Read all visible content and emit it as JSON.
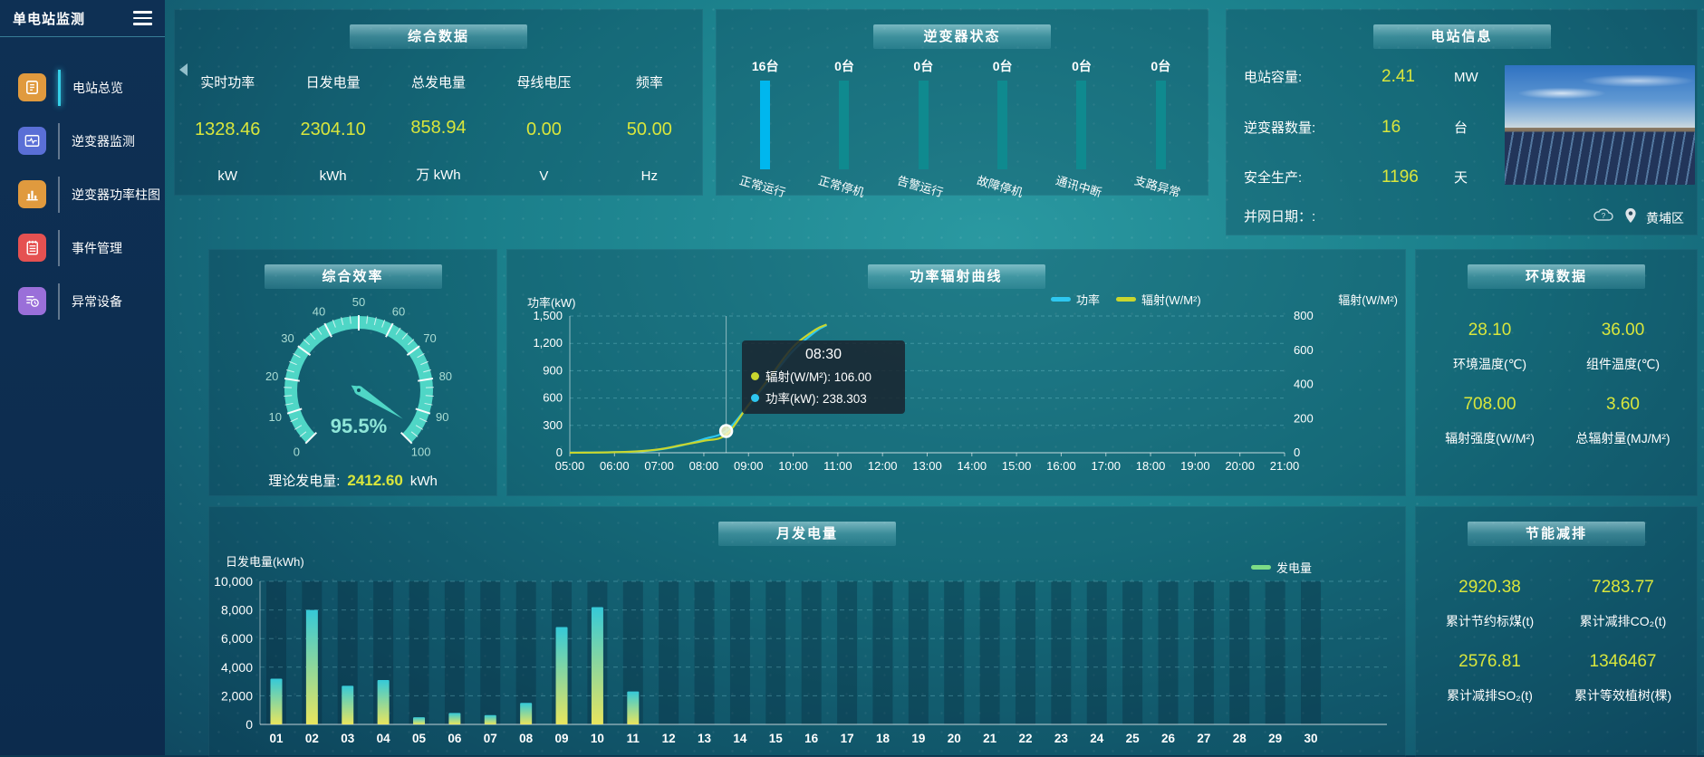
{
  "app": {
    "title": "单电站监测",
    "location": "黄埔区"
  },
  "sidebar": {
    "items": [
      {
        "label": "电站总览",
        "icon": "station-overview-icon",
        "color": "#e09a3e",
        "active": true
      },
      {
        "label": "逆变器监测",
        "icon": "inverter-monitor-icon",
        "color": "#5a6fd6",
        "active": false
      },
      {
        "label": "逆变器功率柱图",
        "icon": "inverter-power-chart-icon",
        "color": "#e09a3e",
        "active": false
      },
      {
        "label": "事件管理",
        "icon": "event-manage-icon",
        "color": "#e55151",
        "active": false
      },
      {
        "label": "异常设备",
        "icon": "abnormal-device-icon",
        "color": "#9a6fd9",
        "active": false
      }
    ]
  },
  "panels": {
    "comprehensive_data": {
      "title": "综合数据",
      "metrics": [
        {
          "label": "实时功率",
          "value": "1328.46",
          "unit": "kW"
        },
        {
          "label": "日发电量",
          "value": "2304.10",
          "unit": "kWh"
        },
        {
          "label": "总发电量",
          "value": "858.94",
          "unit": "万 kWh"
        },
        {
          "label": "母线电压",
          "value": "0.00",
          "unit": "V"
        },
        {
          "label": "频率",
          "value": "50.00",
          "unit": "Hz"
        }
      ]
    },
    "inverter_status": {
      "title": "逆变器状态"
    },
    "station_info": {
      "title": "电站信息",
      "rows": [
        {
          "label": "电站容量:",
          "value": "2.41",
          "unit": "MW"
        },
        {
          "label": "逆变器数量:",
          "value": "16",
          "unit": "台"
        },
        {
          "label": "安全生产:",
          "value": "1196",
          "unit": "天"
        },
        {
          "label": "并网日期：:",
          "value": "",
          "unit": ""
        }
      ]
    },
    "efficiency": {
      "title": "综合效率",
      "theory_label": "理论发电量:",
      "theory_value": "2412.60",
      "theory_unit": "kWh"
    },
    "environment": {
      "title": "环境数据",
      "metrics": [
        {
          "value": "28.10",
          "label": "环境温度(℃)"
        },
        {
          "value": "36.00",
          "label": "组件温度(℃)"
        },
        {
          "value": "708.00",
          "label": "辐射强度(W/M²)"
        },
        {
          "value": "3.60",
          "label": "总辐射量(MJ/M²)"
        }
      ]
    },
    "energy_saving": {
      "title": "节能减排",
      "metrics": [
        {
          "value": "2920.38",
          "label": "累计节约标煤(t)"
        },
        {
          "value": "7283.77",
          "label": "累计减排CO₂(t)"
        },
        {
          "value": "2576.81",
          "label": "累计减排SO₂(t)"
        },
        {
          "value": "1346467",
          "label": "累计等效植树(棵)"
        }
      ]
    }
  },
  "chart_data": [
    {
      "id": "inverter_status",
      "type": "bar",
      "categories": [
        "正常运行",
        "正常停机",
        "告警运行",
        "故障停机",
        "通讯中断",
        "支路异常"
      ],
      "values": [
        16,
        0,
        0,
        0,
        0,
        0
      ],
      "unit": "台",
      "active_color": "#00b7ee",
      "normal_color": "#0f8a8f"
    },
    {
      "id": "efficiency_gauge",
      "type": "gauge",
      "min": 0,
      "max": 100,
      "tick_step": 10,
      "value": 95.5,
      "display": "95.5%",
      "unit": "%",
      "color": "#4fd6c6"
    },
    {
      "id": "power_radiation",
      "type": "line",
      "title": "功率辐射曲线",
      "x_labels": [
        "05:00",
        "06:00",
        "07:00",
        "08:00",
        "09:00",
        "10:00",
        "11:00",
        "12:00",
        "13:00",
        "14:00",
        "15:00",
        "16:00",
        "17:00",
        "18:00",
        "19:00",
        "20:00",
        "21:00"
      ],
      "x_range": [
        5,
        21
      ],
      "left_axis": {
        "label": "功率(kW)",
        "ticks": [
          0,
          300,
          600,
          900,
          1200,
          1500
        ],
        "tick_labels": [
          "0",
          "300",
          "600",
          "900",
          "1,200",
          "1,500"
        ],
        "max": 1500
      },
      "right_axis": {
        "label": "辐射(W/M²)",
        "ticks": [
          0,
          200,
          400,
          600,
          800
        ],
        "tick_labels": [
          "0",
          "200",
          "400",
          "600",
          "800"
        ],
        "max": 800
      },
      "series": [
        {
          "name": "功率",
          "axis": "left",
          "color": "#2ec7f0",
          "points": [
            [
              5,
              2
            ],
            [
              5.5,
              3
            ],
            [
              6,
              6
            ],
            [
              6.5,
              12
            ],
            [
              7,
              35
            ],
            [
              7.5,
              80
            ],
            [
              8,
              150
            ],
            [
              8.5,
              238.3
            ],
            [
              9,
              520
            ],
            [
              9.5,
              820
            ],
            [
              10,
              1120
            ],
            [
              10.5,
              1330
            ],
            [
              10.75,
              1400
            ]
          ]
        },
        {
          "name": "辐射(W/M²)",
          "axis": "right",
          "color": "#c9d62e",
          "points": [
            [
              5,
              0
            ],
            [
              5.5,
              1
            ],
            [
              6,
              3
            ],
            [
              6.5,
              8
            ],
            [
              7,
              20
            ],
            [
              7.5,
              45
            ],
            [
              8,
              70
            ],
            [
              8.5,
              106
            ],
            [
              9,
              280
            ],
            [
              9.5,
              450
            ],
            [
              10,
              620
            ],
            [
              10.5,
              720
            ],
            [
              10.75,
              750
            ]
          ]
        }
      ],
      "tooltip": {
        "time": "08:30",
        "x": 8.5,
        "marker_series": "功率",
        "marker_value": 238.303,
        "rows": [
          {
            "name": "辐射(W/M²)",
            "value": "106.00",
            "color": "#c9d62e"
          },
          {
            "name": "功率(kW)",
            "value": "238.303",
            "color": "#2ec7f0"
          }
        ]
      }
    },
    {
      "id": "monthly_generation",
      "type": "bar",
      "title": "月发电量",
      "ylabel": "日发电量(kWh)",
      "legend": "发电量",
      "legend_color": "#7ddc86",
      "categories": [
        "01",
        "02",
        "03",
        "04",
        "05",
        "06",
        "07",
        "08",
        "09",
        "10",
        "11",
        "12",
        "13",
        "14",
        "15",
        "16",
        "17",
        "18",
        "19",
        "20",
        "21",
        "22",
        "23",
        "24",
        "25",
        "26",
        "27",
        "28",
        "29",
        "30"
      ],
      "values": [
        3200,
        8000,
        2700,
        3100,
        500,
        800,
        650,
        1500,
        6800,
        8200,
        2300,
        0,
        0,
        0,
        0,
        0,
        0,
        0,
        0,
        0,
        0,
        0,
        0,
        0,
        0,
        0,
        0,
        0,
        0,
        0
      ],
      "y_ticks": [
        "0",
        "2,000",
        "4,000",
        "6,000",
        "8,000",
        "10,000"
      ],
      "ylim": [
        0,
        10000
      ],
      "bar_gradient": [
        "#35c9d8",
        "#e8e55e"
      ]
    }
  ]
}
